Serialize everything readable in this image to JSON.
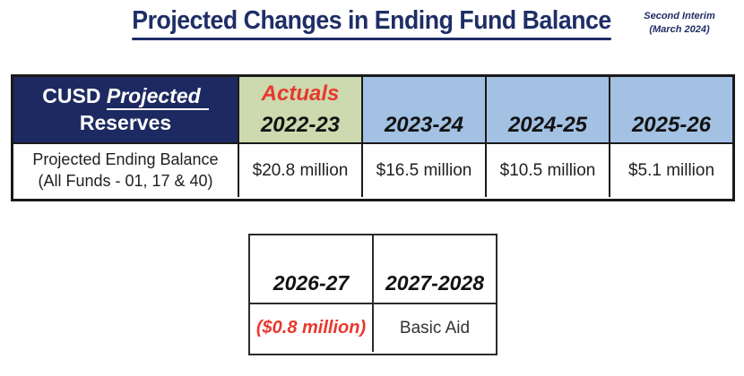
{
  "page": {
    "title": "Projected Changes in Ending Fund Balance",
    "stamp": {
      "line1": "Second Interim",
      "line2": "(March 2024)"
    }
  },
  "colors": {
    "navy": "#1d2a61",
    "title_navy": "#1f2e66",
    "green": "#cdd9ae",
    "blue": "#a2c1e3",
    "red": "#e8392e",
    "ink": "#1a1a1a",
    "text": "#1f1f1f"
  },
  "main_table": {
    "header": {
      "title_prefix": "CUSD ",
      "title_projected": "Projected",
      "title_line2": "Reserves",
      "actuals_label": "Actuals",
      "years": [
        "2022-23",
        "2023-24",
        "2024-25",
        "2025-26"
      ]
    },
    "row": {
      "label_line1": "Projected Ending Balance",
      "label_line2": "(All Funds - 01, 17 & 40)",
      "values": [
        "$20.8 million",
        "$16.5 million",
        "$10.5 million",
        "$5.1 million"
      ]
    }
  },
  "secondary_table": {
    "years": [
      "2026-27",
      "2027-2028"
    ],
    "values": [
      "($0.8 million)",
      "Basic Aid"
    ]
  }
}
